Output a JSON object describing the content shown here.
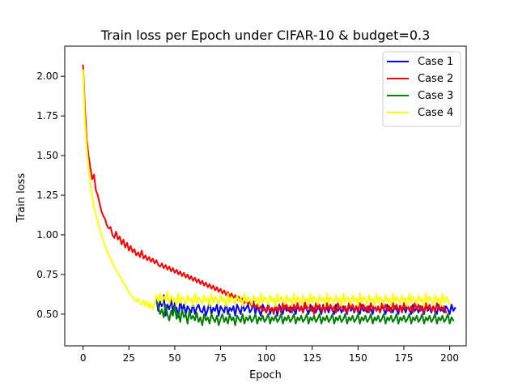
{
  "chart_data": {
    "type": "line",
    "title": "Train loss per Epoch under CIFAR-10 & budget=0.3",
    "xlabel": "Epoch",
    "ylabel": "Train loss",
    "xlim": [
      -10,
      209
    ],
    "ylim": [
      0.3,
      2.19
    ],
    "xticks": [
      0,
      25,
      50,
      75,
      100,
      125,
      150,
      175,
      200
    ],
    "yticks": [
      0.5,
      0.75,
      1.0,
      1.25,
      1.5,
      1.75,
      2.0
    ],
    "ytick_labels": [
      "0.50",
      "0.75",
      "1.00",
      "1.25",
      "1.50",
      "1.75",
      "2.00"
    ],
    "legend_position": "top-right",
    "grid": false,
    "series": [
      {
        "name": "Case 1",
        "color": "#0000ff",
        "start": 40,
        "values": [
          0.6,
          0.52,
          0.58,
          0.55,
          0.62,
          0.49,
          0.56,
          0.53,
          0.6,
          0.51,
          0.57,
          0.54,
          0.48,
          0.59,
          0.52,
          0.56,
          0.5,
          0.55,
          0.53,
          0.51,
          0.57,
          0.5,
          0.54,
          0.56,
          0.52,
          0.51,
          0.55,
          0.49,
          0.53,
          0.58,
          0.5,
          0.54,
          0.52,
          0.56,
          0.49,
          0.55,
          0.53,
          0.51,
          0.57,
          0.5,
          0.54,
          0.52,
          0.55,
          0.49,
          0.56,
          0.53,
          0.5,
          0.57,
          0.52,
          0.54,
          0.56,
          0.51,
          0.53,
          0.58,
          0.5,
          0.55,
          0.52,
          0.49,
          0.56,
          0.53,
          0.51,
          0.57,
          0.5,
          0.54,
          0.52,
          0.55,
          0.49,
          0.56,
          0.53,
          0.5,
          0.57,
          0.52,
          0.54,
          0.51,
          0.55,
          0.53,
          0.5,
          0.56,
          0.52,
          0.54,
          0.51,
          0.55,
          0.53,
          0.5,
          0.56,
          0.52,
          0.54,
          0.51,
          0.55,
          0.53,
          0.5,
          0.56,
          0.52,
          0.54,
          0.51,
          0.55,
          0.53,
          0.5,
          0.56,
          0.52,
          0.54,
          0.51,
          0.55,
          0.53,
          0.5,
          0.56,
          0.52,
          0.54,
          0.51,
          0.55,
          0.53,
          0.5,
          0.56,
          0.52,
          0.54,
          0.51,
          0.55,
          0.53,
          0.5,
          0.56,
          0.52,
          0.54,
          0.51,
          0.55,
          0.53,
          0.5,
          0.56,
          0.52,
          0.54,
          0.51,
          0.55,
          0.53,
          0.5,
          0.56,
          0.52,
          0.54,
          0.51,
          0.55,
          0.53,
          0.5,
          0.56,
          0.52,
          0.54,
          0.51,
          0.55,
          0.53,
          0.5,
          0.56,
          0.52,
          0.54,
          0.51,
          0.55,
          0.53,
          0.5,
          0.56,
          0.52,
          0.54,
          0.51,
          0.55,
          0.53,
          0.5,
          0.56,
          0.52,
          0.54
        ]
      },
      {
        "name": "Case 2",
        "color": "#ff0000",
        "start": 0,
        "values": [
          2.07,
          1.8,
          1.6,
          1.5,
          1.42,
          1.35,
          1.38,
          1.28,
          1.25,
          1.2,
          1.15,
          1.12,
          1.1,
          1.06,
          1.04,
          1.05,
          1.0,
          0.98,
          1.02,
          0.97,
          0.99,
          0.94,
          0.97,
          0.92,
          0.95,
          0.9,
          0.93,
          0.89,
          0.91,
          0.87,
          0.89,
          0.86,
          0.9,
          0.85,
          0.87,
          0.84,
          0.86,
          0.83,
          0.85,
          0.82,
          0.84,
          0.81,
          0.8,
          0.82,
          0.79,
          0.81,
          0.78,
          0.8,
          0.77,
          0.79,
          0.76,
          0.78,
          0.75,
          0.77,
          0.74,
          0.76,
          0.73,
          0.75,
          0.72,
          0.74,
          0.71,
          0.73,
          0.7,
          0.72,
          0.69,
          0.71,
          0.68,
          0.7,
          0.67,
          0.69,
          0.66,
          0.68,
          0.65,
          0.67,
          0.64,
          0.66,
          0.63,
          0.65,
          0.62,
          0.64,
          0.61,
          0.63,
          0.6,
          0.62,
          0.59,
          0.61,
          0.58,
          0.6,
          0.57,
          0.59,
          0.56,
          0.58,
          0.55,
          0.57,
          0.54,
          0.56,
          0.53,
          0.55,
          0.52,
          0.54,
          0.51,
          0.55,
          0.52,
          0.54,
          0.5,
          0.56,
          0.52,
          0.55,
          0.51,
          0.57,
          0.53,
          0.56,
          0.52,
          0.55,
          0.51,
          0.56,
          0.53,
          0.57,
          0.52,
          0.55,
          0.51,
          0.58,
          0.53,
          0.56,
          0.52,
          0.55,
          0.5,
          0.57,
          0.53,
          0.56,
          0.52,
          0.55,
          0.51,
          0.57,
          0.53,
          0.56,
          0.52,
          0.55,
          0.51,
          0.57,
          0.53,
          0.56,
          0.52,
          0.55,
          0.51,
          0.57,
          0.53,
          0.56,
          0.52,
          0.55,
          0.51,
          0.57,
          0.53,
          0.56,
          0.52,
          0.55,
          0.51,
          0.57,
          0.53,
          0.56,
          0.52,
          0.55,
          0.51,
          0.57,
          0.53,
          0.56,
          0.52,
          0.55,
          0.51,
          0.57,
          0.53,
          0.56,
          0.52,
          0.55,
          0.51,
          0.57,
          0.53,
          0.56,
          0.52,
          0.55,
          0.51,
          0.57,
          0.53,
          0.56,
          0.52,
          0.55,
          0.51,
          0.57,
          0.53,
          0.56,
          0.52,
          0.55,
          0.51,
          0.57,
          0.53,
          0.56,
          0.52,
          0.55,
          0.51
        ]
      },
      {
        "name": "Case 3",
        "color": "#008000",
        "start": 40,
        "values": [
          0.6,
          0.55,
          0.5,
          0.53,
          0.48,
          0.56,
          0.5,
          0.46,
          0.52,
          0.49,
          0.55,
          0.47,
          0.51,
          0.45,
          0.53,
          0.48,
          0.5,
          0.44,
          0.52,
          0.47,
          0.49,
          0.46,
          0.51,
          0.45,
          0.48,
          0.43,
          0.5,
          0.46,
          0.48,
          0.44,
          0.5,
          0.47,
          0.45,
          0.49,
          0.43,
          0.47,
          0.5,
          0.45,
          0.48,
          0.44,
          0.5,
          0.46,
          0.48,
          0.43,
          0.49,
          0.47,
          0.45,
          0.5,
          0.44,
          0.48,
          0.46,
          0.49,
          0.45,
          0.47,
          0.5,
          0.44,
          0.48,
          0.46,
          0.49,
          0.45,
          0.47,
          0.5,
          0.44,
          0.48,
          0.46,
          0.49,
          0.45,
          0.47,
          0.5,
          0.44,
          0.48,
          0.46,
          0.49,
          0.45,
          0.47,
          0.5,
          0.44,
          0.48,
          0.46,
          0.49,
          0.45,
          0.47,
          0.5,
          0.44,
          0.48,
          0.46,
          0.49,
          0.45,
          0.47,
          0.5,
          0.44,
          0.48,
          0.46,
          0.49,
          0.45,
          0.47,
          0.5,
          0.44,
          0.48,
          0.46,
          0.49,
          0.45,
          0.47,
          0.5,
          0.44,
          0.48,
          0.46,
          0.49,
          0.45,
          0.47,
          0.5,
          0.44,
          0.48,
          0.46,
          0.49,
          0.45,
          0.47,
          0.5,
          0.44,
          0.48,
          0.46,
          0.49,
          0.45,
          0.47,
          0.5,
          0.44,
          0.48,
          0.46,
          0.49,
          0.45,
          0.47,
          0.5,
          0.44,
          0.48,
          0.46,
          0.49,
          0.45,
          0.47,
          0.5,
          0.44,
          0.48,
          0.46,
          0.49,
          0.45,
          0.47,
          0.5,
          0.44,
          0.48,
          0.46,
          0.49,
          0.45,
          0.47,
          0.5,
          0.44,
          0.48,
          0.46,
          0.49,
          0.45,
          0.47,
          0.5,
          0.44,
          0.48,
          0.46
        ]
      },
      {
        "name": "Case 4",
        "color": "#ffff00",
        "start": 0,
        "values": [
          2.04,
          1.72,
          1.55,
          1.43,
          1.32,
          1.24,
          1.17,
          1.13,
          1.08,
          1.04,
          1.0,
          0.96,
          0.93,
          0.9,
          0.87,
          0.85,
          0.82,
          0.8,
          0.78,
          0.76,
          0.74,
          0.72,
          0.7,
          0.68,
          0.66,
          0.64,
          0.62,
          0.61,
          0.59,
          0.58,
          0.6,
          0.57,
          0.56,
          0.59,
          0.55,
          0.58,
          0.54,
          0.57,
          0.53,
          0.56,
          0.62,
          0.58,
          0.63,
          0.57,
          0.61,
          0.59,
          0.64,
          0.56,
          0.62,
          0.58,
          0.6,
          0.55,
          0.63,
          0.57,
          0.61,
          0.59,
          0.56,
          0.62,
          0.58,
          0.6,
          0.55,
          0.63,
          0.57,
          0.61,
          0.59,
          0.56,
          0.62,
          0.58,
          0.6,
          0.55,
          0.63,
          0.57,
          0.61,
          0.59,
          0.56,
          0.62,
          0.58,
          0.6,
          0.55,
          0.63,
          0.57,
          0.61,
          0.59,
          0.56,
          0.62,
          0.58,
          0.6,
          0.55,
          0.63,
          0.57,
          0.61,
          0.59,
          0.56,
          0.62,
          0.58,
          0.6,
          0.55,
          0.63,
          0.57,
          0.61,
          0.59,
          0.56,
          0.62,
          0.58,
          0.6,
          0.55,
          0.63,
          0.57,
          0.61,
          0.59,
          0.56,
          0.62,
          0.58,
          0.6,
          0.55,
          0.63,
          0.57,
          0.61,
          0.59,
          0.56,
          0.62,
          0.58,
          0.6,
          0.55,
          0.63,
          0.57,
          0.61,
          0.59,
          0.56,
          0.62,
          0.58,
          0.6,
          0.55,
          0.63,
          0.57,
          0.61,
          0.59,
          0.56,
          0.62,
          0.58,
          0.6,
          0.55,
          0.63,
          0.57,
          0.61,
          0.59,
          0.56,
          0.62,
          0.58,
          0.6,
          0.55,
          0.63,
          0.57,
          0.61,
          0.59,
          0.56,
          0.62,
          0.58,
          0.6,
          0.55,
          0.63,
          0.57,
          0.61,
          0.59,
          0.56,
          0.62,
          0.58,
          0.6,
          0.55,
          0.63,
          0.57,
          0.61,
          0.59,
          0.56,
          0.62,
          0.58,
          0.6,
          0.55,
          0.63,
          0.57,
          0.61,
          0.59,
          0.56,
          0.62,
          0.58,
          0.6,
          0.55,
          0.63,
          0.57,
          0.61,
          0.59,
          0.56,
          0.62,
          0.58,
          0.6,
          0.55,
          0.63,
          0.57,
          0.61,
          0.59,
          0.56
        ]
      }
    ]
  }
}
